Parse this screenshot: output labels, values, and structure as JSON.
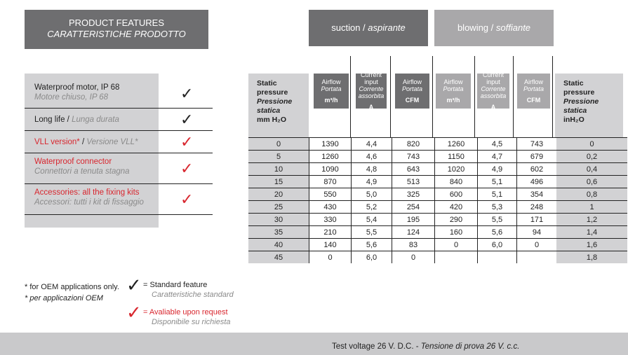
{
  "features_header": {
    "title": "PRODUCT FEATURES",
    "subtitle": "CARATTERISTICHE PRODOTTO"
  },
  "features": [
    {
      "en": "Waterproof motor, IP 68",
      "it": "Motore chiuso, IP 68",
      "type": "standard"
    },
    {
      "en": "Long life",
      "it": "Lunga durata",
      "type": "standard"
    },
    {
      "en": "VLL version*",
      "it": "Versione VLL*",
      "type": "request"
    },
    {
      "en": "Waterproof connector",
      "it": "Connettori a tenuta stagna",
      "type": "request"
    },
    {
      "en": "Accessories: all the fixing kits",
      "it": "Accessori: tutti i kit di fissaggio",
      "type": "request"
    }
  ],
  "check_colors": {
    "standard": "#222222",
    "request": "#d8262e"
  },
  "modes": {
    "suction": {
      "en": "suction",
      "it": "aspirante"
    },
    "blowing": {
      "en": "blowing",
      "it": "soffiante"
    }
  },
  "columns": {
    "static_mm": [
      "Static",
      "pressure",
      "Pressione",
      "statica",
      "mm H₂O"
    ],
    "airflow_m3h": [
      "Airflow",
      "Portata",
      "m³/h"
    ],
    "current": [
      "Current",
      "input",
      "Corrente",
      "assorbita",
      "A"
    ],
    "airflow_cfm": [
      "Airflow",
      "Portata",
      "CFM"
    ],
    "static_in": [
      "Static",
      "pressure",
      "Pressione",
      "statica",
      "inH₂O"
    ]
  },
  "rows": [
    [
      "0",
      "1390",
      "4,4",
      "820",
      "1260",
      "4,5",
      "743",
      "0"
    ],
    [
      "5",
      "1260",
      "4,6",
      "743",
      "1150",
      "4,7",
      "679",
      "0,2"
    ],
    [
      "10",
      "1090",
      "4,8",
      "643",
      "1020",
      "4,9",
      "602",
      "0,4"
    ],
    [
      "15",
      "870",
      "4,9",
      "513",
      "840",
      "5,1",
      "496",
      "0,6"
    ],
    [
      "20",
      "550",
      "5,0",
      "325",
      "600",
      "5,1",
      "354",
      "0,8"
    ],
    [
      "25",
      "430",
      "5,2",
      "254",
      "420",
      "5,3",
      "248",
      "1"
    ],
    [
      "30",
      "330",
      "5,4",
      "195",
      "290",
      "5,5",
      "171",
      "1,2"
    ],
    [
      "35",
      "210",
      "5,5",
      "124",
      "160",
      "5,6",
      "94",
      "1,4"
    ],
    [
      "40",
      "140",
      "5,6",
      "83",
      "0",
      "6,0",
      "0",
      "1,6"
    ],
    [
      "45",
      "0",
      "6,0",
      "0",
      "",
      "",
      "",
      "1,8"
    ]
  ],
  "notes": {
    "oem_en": "for OEM applications only.",
    "oem_it": "per applicazioni OEM",
    "star": "*"
  },
  "legend": {
    "standard_en": "= Standard feature",
    "standard_it": "Caratteristiche standard",
    "request_en": "= Avaliable upon request",
    "request_it": "Disponibile su richiesta"
  },
  "footer": {
    "en": "Test voltage 26 V. D.C. -",
    "it": "Tensione di prova 26 V. c.c."
  }
}
